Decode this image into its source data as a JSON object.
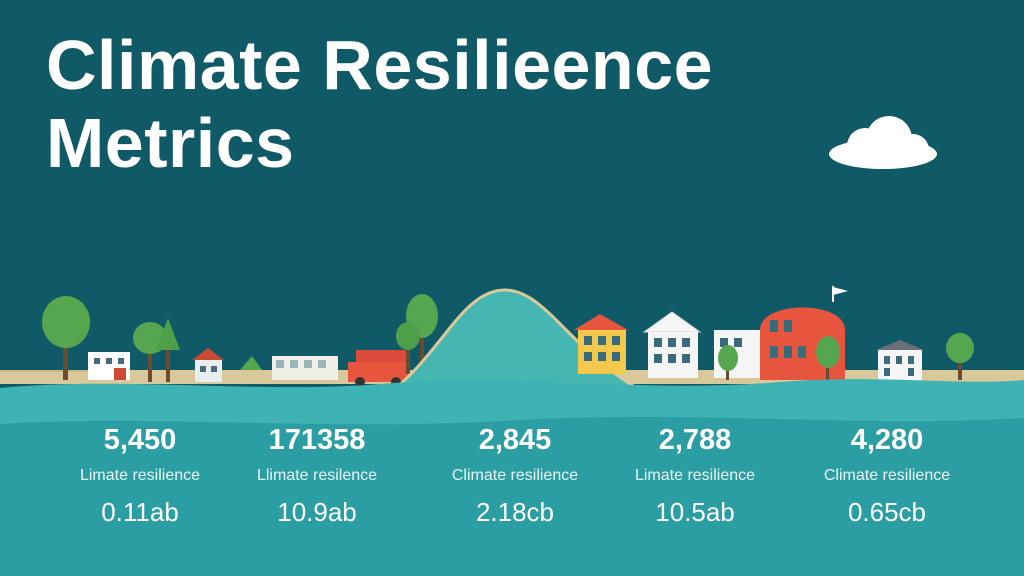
{
  "title": {
    "line1": "Climate Resilieence",
    "line2": "Metrics"
  },
  "icons": [
    "cloud-icon",
    "tree-icon",
    "house-icon",
    "truck-icon",
    "flag-icon",
    "domed-building-icon"
  ],
  "colors": {
    "background": "#0f5a66",
    "water": "#3fb3b4",
    "water_deep": "#2a9ea3",
    "hill": "#45b6b2",
    "text": "#ffffff",
    "accent_red": "#e8553e"
  },
  "metrics": [
    {
      "value": "5,450",
      "label": "Limate resilience",
      "sub": "0.11ab"
    },
    {
      "value": "171358",
      "label": "Llimate resilence",
      "sub": "10.9ab"
    },
    {
      "value": "2,845",
      "label": "Climate resilience",
      "sub": "2.18cb"
    },
    {
      "value": "2,788",
      "label": "Limate resilience",
      "sub": "10.5ab"
    },
    {
      "value": "4,280",
      "label": "Climate resilience",
      "sub": "0.65cb"
    }
  ]
}
